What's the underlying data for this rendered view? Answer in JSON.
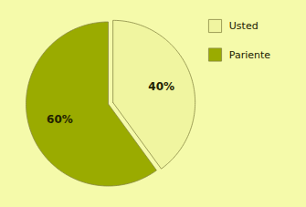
{
  "chart_data": {
    "type": "pie",
    "categories": [
      "Usted",
      "Pariente"
    ],
    "values": [
      40,
      60
    ],
    "value_labels": [
      "40%",
      "60%"
    ],
    "colors": [
      "#f0f5a0",
      "#9aab00"
    ],
    "data_labels": true,
    "legend": "upper right"
  }
}
